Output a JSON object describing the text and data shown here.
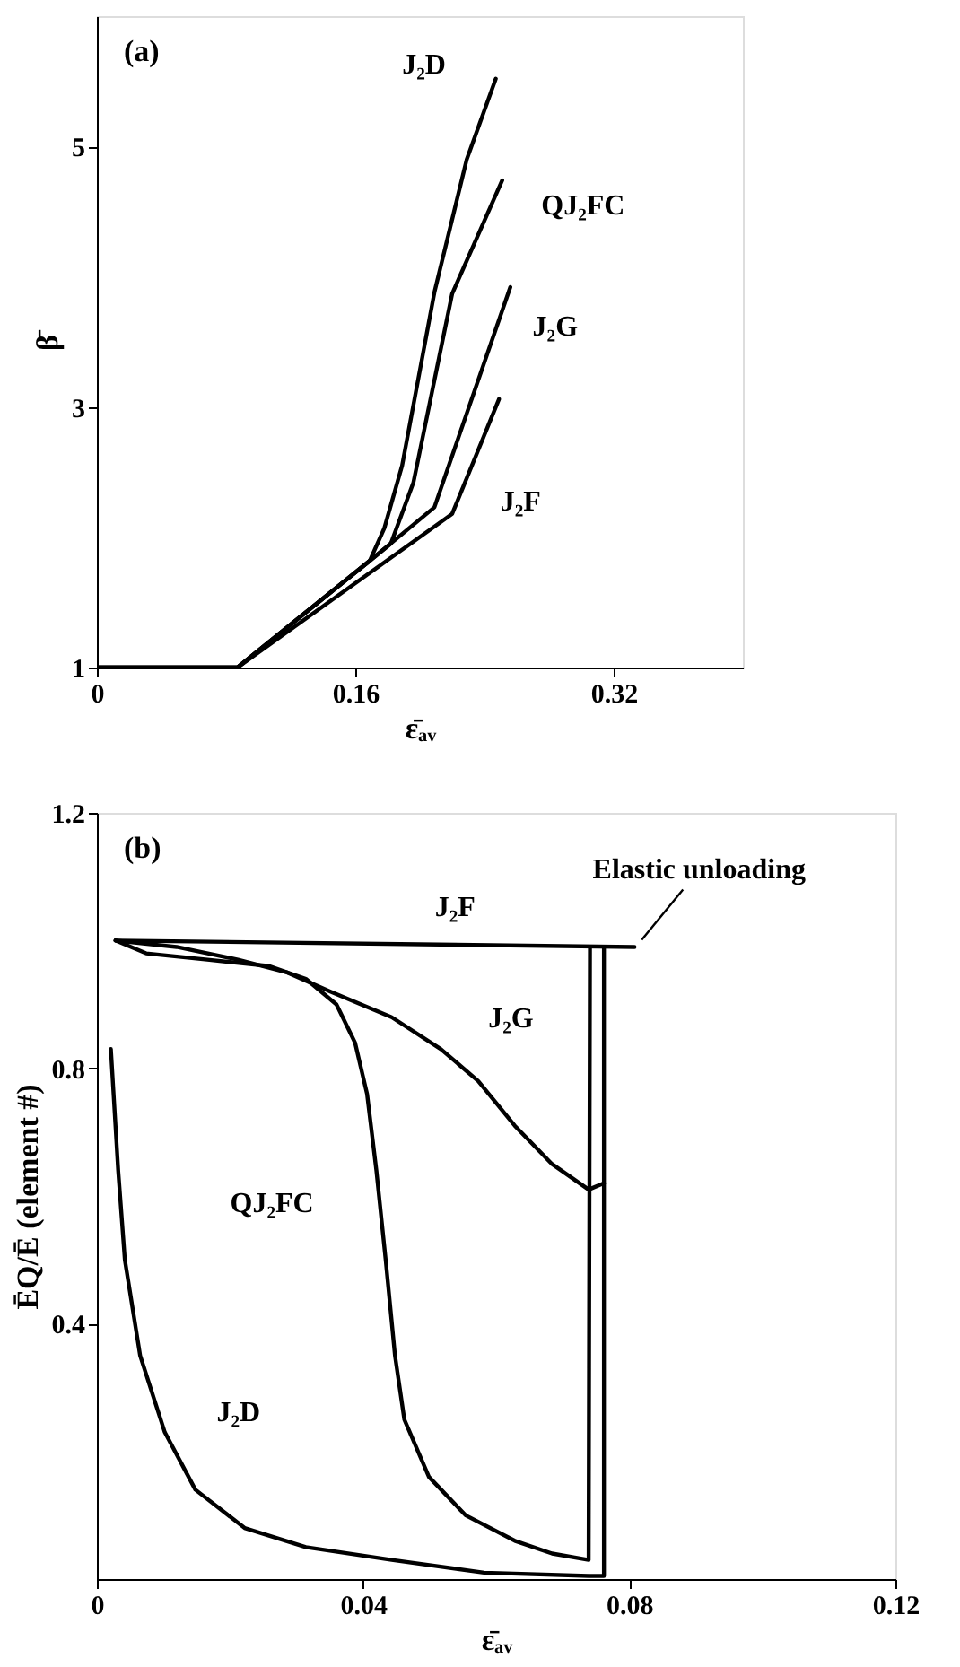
{
  "chart_data": [
    {
      "type": "line",
      "title": "(a)",
      "xlabel": "ε̄ₐᵥ",
      "ylabel": "β̄",
      "xlim": [
        0,
        0.4
      ],
      "ylim": [
        1,
        6
      ],
      "xticks": [
        0,
        0.16,
        0.32
      ],
      "yticks": [
        1,
        3,
        5
      ],
      "grid": false,
      "marker": "none",
      "line_style": "solid",
      "series": [
        {
          "name": "J₂D",
          "color": "#000000",
          "x": [
            0,
            0.087,
            0.169,
            0.178,
            0.189,
            0.209,
            0.229,
            0.247
          ],
          "values": [
            1,
            1,
            1.82,
            2.07,
            2.55,
            3.88,
            4.9,
            5.52
          ]
        },
        {
          "name": "QJ₂FC",
          "color": "#000000",
          "x": [
            0,
            0.087,
            0.169,
            0.182,
            0.196,
            0.22,
            0.251
          ],
          "values": [
            1,
            1,
            1.82,
            1.95,
            2.42,
            3.87,
            4.74
          ]
        },
        {
          "name": "J₂G",
          "color": "#000000",
          "x": [
            0,
            0.087,
            0.169,
            0.209,
            0.256
          ],
          "values": [
            1,
            1,
            1.82,
            2.23,
            3.92
          ]
        },
        {
          "name": "J₂F",
          "color": "#000000",
          "x": [
            0,
            0.087,
            0.22,
            0.249
          ],
          "values": [
            1,
            1,
            2.18,
            3.06
          ]
        }
      ]
    },
    {
      "type": "line",
      "title": "(b)",
      "xlabel": "ε̄ₐᵥ",
      "ylabel": "ĒQ/Ē (element #)",
      "xlim": [
        0,
        0.12
      ],
      "ylim": [
        0,
        1.2
      ],
      "xticks": [
        0,
        0.04,
        0.08,
        0.12
      ],
      "yticks": [
        0.4,
        0.8,
        1.2
      ],
      "grid": false,
      "marker": "none",
      "line_style": "solid",
      "annotations": [
        {
          "text": "Elastic unloading",
          "x": 0.0808,
          "y": 0.99
        }
      ],
      "series": [
        {
          "name": "J₂F",
          "color": "#000000",
          "x": [
            0.0028,
            0.0808
          ],
          "values": [
            1.0,
            0.99
          ]
        },
        {
          "name": "J₂G",
          "color": "#000000",
          "x": [
            0.0028,
            0.012,
            0.0212,
            0.0286,
            0.0351,
            0.0443,
            0.0517,
            0.0573,
            0.0628,
            0.0684,
            0.0739,
            0.0762
          ],
          "values": [
            1.0,
            0.99,
            0.97,
            0.95,
            0.92,
            0.88,
            0.83,
            0.78,
            0.71,
            0.65,
            0.61,
            0.62
          ]
        },
        {
          "name": "QJ₂FC",
          "color": "#000000",
          "x": [
            0.0028,
            0.0074,
            0.0166,
            0.0259,
            0.0314,
            0.036,
            0.0388,
            0.0406,
            0.042,
            0.0434,
            0.0448,
            0.0462,
            0.0499,
            0.0554,
            0.0628,
            0.0684,
            0.0739,
            0.0741
          ],
          "values": [
            1.0,
            0.98,
            0.97,
            0.96,
            0.94,
            0.9,
            0.84,
            0.76,
            0.64,
            0.5,
            0.35,
            0.25,
            0.16,
            0.1,
            0.06,
            0.04,
            0.03,
            0.99
          ]
        },
        {
          "name": "J₂D",
          "color": "#000000",
          "x": [
            0.0021,
            0.0032,
            0.0042,
            0.0065,
            0.0102,
            0.0148,
            0.0222,
            0.0314,
            0.0443,
            0.0582,
            0.0739,
            0.0762,
            0.0762
          ],
          "values": [
            0.83,
            0.64,
            0.5,
            0.35,
            0.23,
            0.14,
            0.08,
            0.05,
            0.03,
            0.01,
            0.005,
            0.005,
            0.99
          ]
        }
      ]
    }
  ]
}
